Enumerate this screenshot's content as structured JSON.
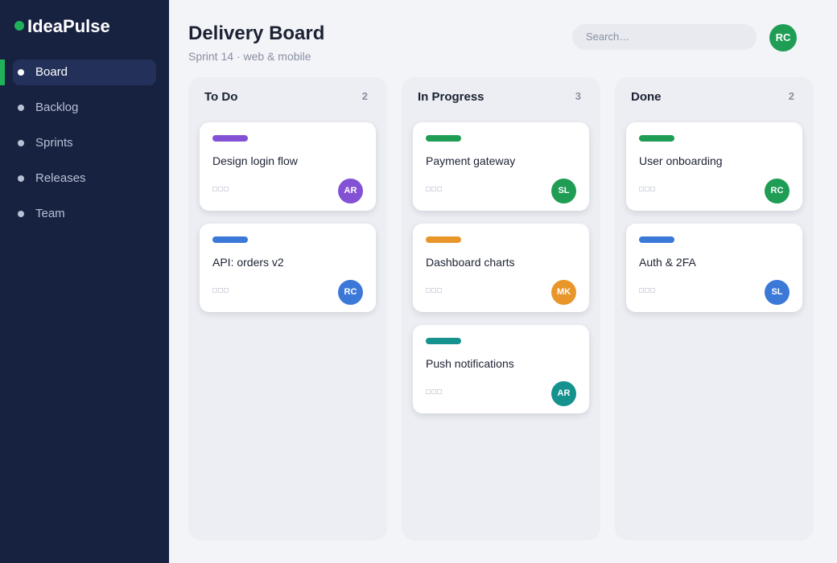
{
  "sidebar": {
    "logo": "IdeaPulse",
    "logo_color": "#1fb25a",
    "nav": [
      {
        "label": "Board",
        "active": true
      },
      {
        "label": "Backlog",
        "active": false
      },
      {
        "label": "Sprints",
        "active": false
      },
      {
        "label": "Releases",
        "active": false
      },
      {
        "label": "Team",
        "active": false
      }
    ]
  },
  "header": {
    "title": "Delivery Board",
    "subtitle": "Sprint 14 · web & mobile",
    "search_placeholder": "Search…",
    "avatar": "RC",
    "avatar_color": "#1f9d55"
  },
  "board": {
    "columns": [
      {
        "name": "To Do",
        "count": 2,
        "cards": [
          {
            "title": "Design login flow",
            "tag_color": "#8352d4",
            "assignee": "AR",
            "assignee_color": "#8352d4"
          },
          {
            "title": "API: orders v2",
            "tag_color": "#3b78d8",
            "assignee": "RC",
            "assignee_color": "#3b78d8"
          }
        ]
      },
      {
        "name": "In Progress",
        "count": 3,
        "cards": [
          {
            "title": "Payment gateway",
            "tag_color": "#1f9d55",
            "assignee": "SL",
            "assignee_color": "#1f9d55"
          },
          {
            "title": "Dashboard charts",
            "tag_color": "#e8962a",
            "assignee": "MK",
            "assignee_color": "#e8962a"
          },
          {
            "title": "Push notifications",
            "tag_color": "#15918e",
            "assignee": "AR",
            "assignee_color": "#15918e"
          }
        ]
      },
      {
        "name": "Done",
        "count": 2,
        "cards": [
          {
            "title": "User onboarding",
            "tag_color": "#1f9d55",
            "assignee": "RC",
            "assignee_color": "#1f9d55"
          },
          {
            "title": "Auth & 2FA",
            "tag_color": "#3b78d8",
            "assignee": "SL",
            "assignee_color": "#3b78d8"
          }
        ]
      }
    ]
  }
}
